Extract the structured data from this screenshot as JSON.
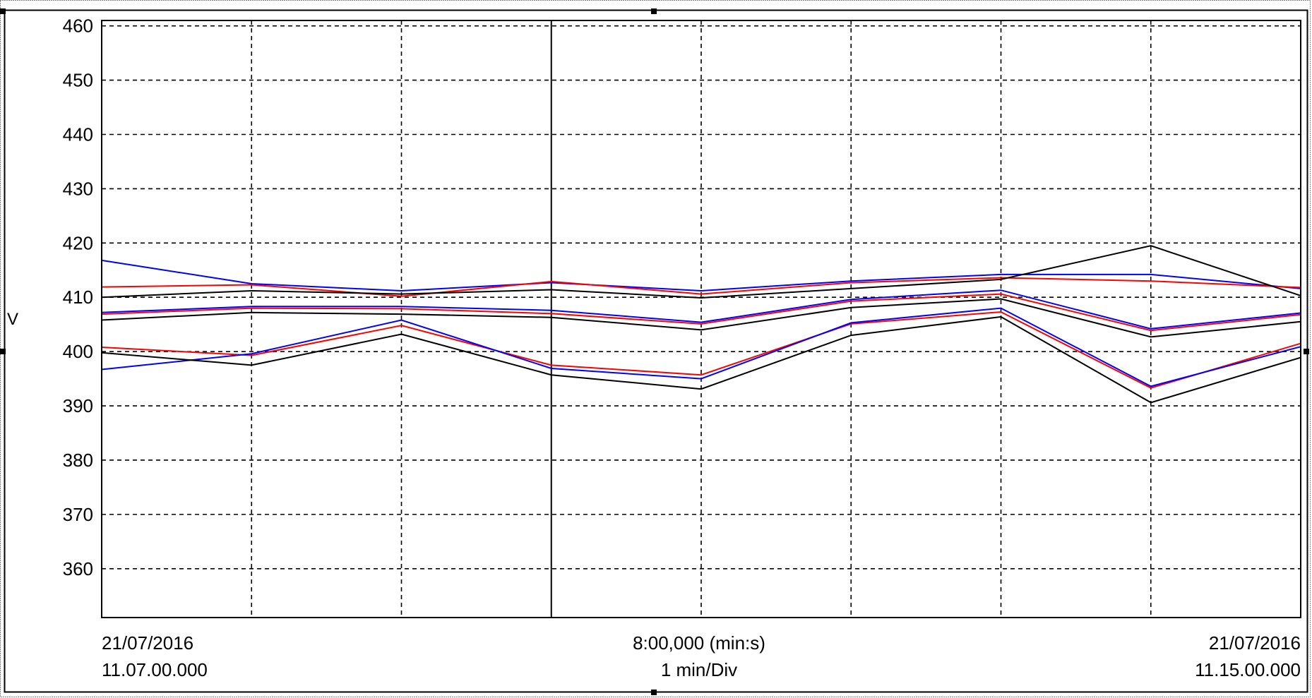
{
  "colors": {
    "red": "#ff0000",
    "blue": "#0000ff",
    "black": "#000000",
    "grid": "#000000",
    "background": "#ffffff"
  },
  "chart_data": {
    "type": "line",
    "ylabel": "V",
    "xlabel": "",
    "ylim": [
      351,
      461
    ],
    "yticks": [
      360,
      370,
      380,
      390,
      400,
      410,
      420,
      430,
      440,
      450,
      460
    ],
    "grid": true,
    "x": [
      0,
      1,
      2,
      3,
      4,
      5,
      6,
      7,
      8
    ],
    "footer": {
      "left_date": "21/07/2016",
      "left_time": "11.07.00.000",
      "center_duration": "8:00,000 (min:s)",
      "center_scale": "1 min/Div",
      "right_date": "21/07/2016",
      "right_time": "11.15.00.000"
    },
    "series": [
      {
        "color": "#0000ff",
        "values": [
          416.8,
          412.5,
          411.2,
          412.7,
          411.2,
          413.0,
          414.2,
          414.2,
          411.6
        ]
      },
      {
        "color": "#ff0000",
        "values": [
          411.9,
          412.3,
          410.2,
          412.9,
          410.6,
          412.7,
          413.6,
          413.0,
          411.8
        ]
      },
      {
        "color": "#000000",
        "values": [
          410.0,
          411.2,
          410.6,
          411.4,
          409.9,
          411.6,
          413.3,
          419.5,
          410.3
        ]
      },
      {
        "color": "#0000ff",
        "values": [
          407.2,
          408.3,
          408.3,
          407.6,
          405.4,
          409.6,
          411.3,
          404.2,
          407.1
        ]
      },
      {
        "color": "#ff0000",
        "values": [
          406.9,
          408.0,
          407.9,
          407.0,
          405.1,
          409.3,
          410.6,
          403.9,
          406.8
        ]
      },
      {
        "color": "#000000",
        "values": [
          405.8,
          407.2,
          406.9,
          406.3,
          404.0,
          408.1,
          409.7,
          402.7,
          405.5
        ]
      },
      {
        "color": "#ff0000",
        "values": [
          400.8,
          399.3,
          404.8,
          397.5,
          395.7,
          405.1,
          407.3,
          393.3,
          401.5
        ]
      },
      {
        "color": "#0000ff",
        "values": [
          396.7,
          399.6,
          405.8,
          396.9,
          395.0,
          405.3,
          408.0,
          393.6,
          400.9
        ]
      },
      {
        "color": "#000000",
        "values": [
          399.8,
          397.5,
          403.2,
          395.7,
          393.1,
          403.0,
          406.4,
          390.6,
          398.9
        ]
      }
    ]
  }
}
